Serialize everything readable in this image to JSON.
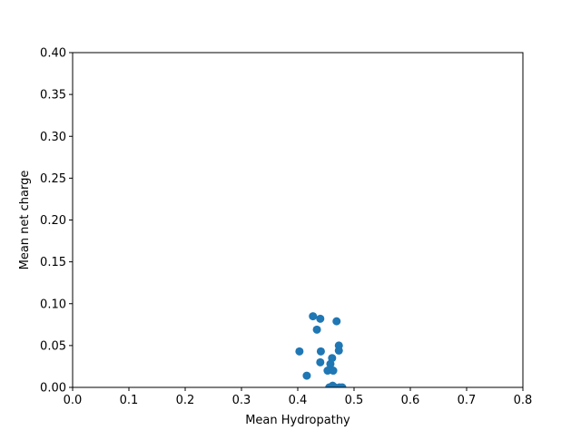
{
  "chart_data": {
    "type": "scatter",
    "title": "",
    "xlabel": "Mean Hydropathy",
    "ylabel": "Mean net charge",
    "xlim": [
      0.0,
      0.8
    ],
    "ylim": [
      0.0,
      0.4
    ],
    "xticks": [
      0.0,
      0.1,
      0.2,
      0.3,
      0.4,
      0.5,
      0.6,
      0.7,
      0.8
    ],
    "xtick_labels": [
      "0.0",
      "0.1",
      "0.2",
      "0.3",
      "0.4",
      "0.5",
      "0.6",
      "0.7",
      "0.8"
    ],
    "yticks": [
      0.0,
      0.05,
      0.1,
      0.15,
      0.2,
      0.25,
      0.3,
      0.35,
      0.4
    ],
    "ytick_labels": [
      "0.00",
      "0.05",
      "0.10",
      "0.15",
      "0.20",
      "0.25",
      "0.30",
      "0.35",
      "0.40"
    ],
    "grid": false,
    "marker_color": "#1f77b4",
    "points": [
      {
        "x": 0.427,
        "y": 0.085
      },
      {
        "x": 0.44,
        "y": 0.082
      },
      {
        "x": 0.469,
        "y": 0.079
      },
      {
        "x": 0.434,
        "y": 0.069
      },
      {
        "x": 0.473,
        "y": 0.05
      },
      {
        "x": 0.473,
        "y": 0.044
      },
      {
        "x": 0.403,
        "y": 0.043
      },
      {
        "x": 0.441,
        "y": 0.043
      },
      {
        "x": 0.461,
        "y": 0.035
      },
      {
        "x": 0.44,
        "y": 0.03
      },
      {
        "x": 0.458,
        "y": 0.028
      },
      {
        "x": 0.453,
        "y": 0.02
      },
      {
        "x": 0.463,
        "y": 0.02
      },
      {
        "x": 0.416,
        "y": 0.014
      },
      {
        "x": 0.462,
        "y": 0.002
      },
      {
        "x": 0.456,
        "y": 0.0
      },
      {
        "x": 0.466,
        "y": 0.0
      },
      {
        "x": 0.474,
        "y": 0.0
      },
      {
        "x": 0.479,
        "y": 0.0
      }
    ]
  }
}
